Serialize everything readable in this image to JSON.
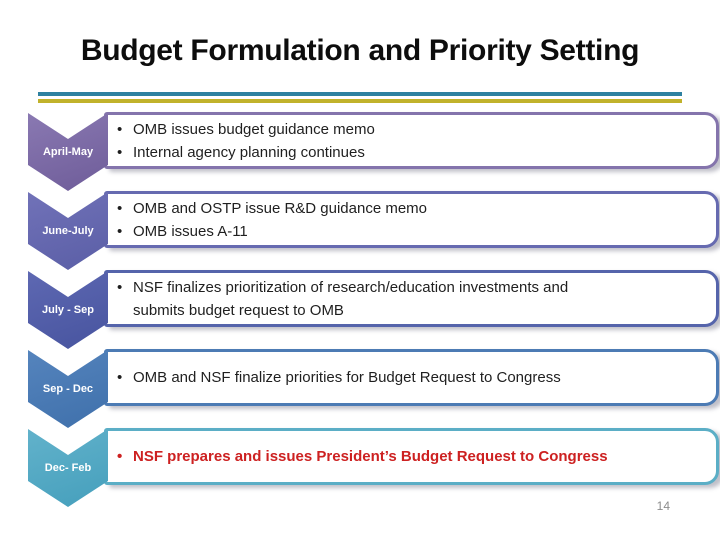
{
  "slide": {
    "title": "Budget Formulation and Priority Setting",
    "page_number": "14",
    "divider": {
      "teal": "#2E81A0",
      "yellow": "#C1B22B"
    },
    "timeline_rows": [
      {
        "period": "April-May",
        "chevron_top": "#8A79B2",
        "chevron_bottom": "#6E5C99",
        "border": "#8474AC",
        "text_color": "#1F1F1F",
        "bold": false,
        "bullets": [
          "OMB issues budget guidance memo",
          "Internal agency planning continues"
        ]
      },
      {
        "period": "June-July",
        "chevron_top": "#7172B8",
        "chevron_bottom": "#5A5EA6",
        "border": "#666AB0",
        "text_color": "#1F1F1F",
        "bold": false,
        "bullets": [
          "OMB and OSTP issue R&D guidance memo",
          "OMB issues A-11"
        ]
      },
      {
        "period": "July - Sep",
        "chevron_top": "#5E68B2",
        "chevron_bottom": "#47549F",
        "border": "#5564AB",
        "text_color": "#1F1F1F",
        "bold": false,
        "bullets": [
          "NSF finalizes prioritization of research/education investments and submits budget request to OMB"
        ]
      },
      {
        "period": "Sep - Dec",
        "chevron_top": "#5584BD",
        "chevron_bottom": "#3F70AB",
        "border": "#4C7BB4",
        "text_color": "#1F1F1F",
        "bold": false,
        "bullets": [
          "OMB and NSF finalize priorities for Budget Request to Congress"
        ]
      },
      {
        "period": "Dec- Feb",
        "chevron_top": "#62B2CB",
        "chevron_bottom": "#459FBC",
        "border": "#5BAEC6",
        "text_color": "#CD2121",
        "bold": true,
        "bullets": [
          "NSF prepares and issues President’s Budget Request to Congress"
        ]
      }
    ]
  }
}
